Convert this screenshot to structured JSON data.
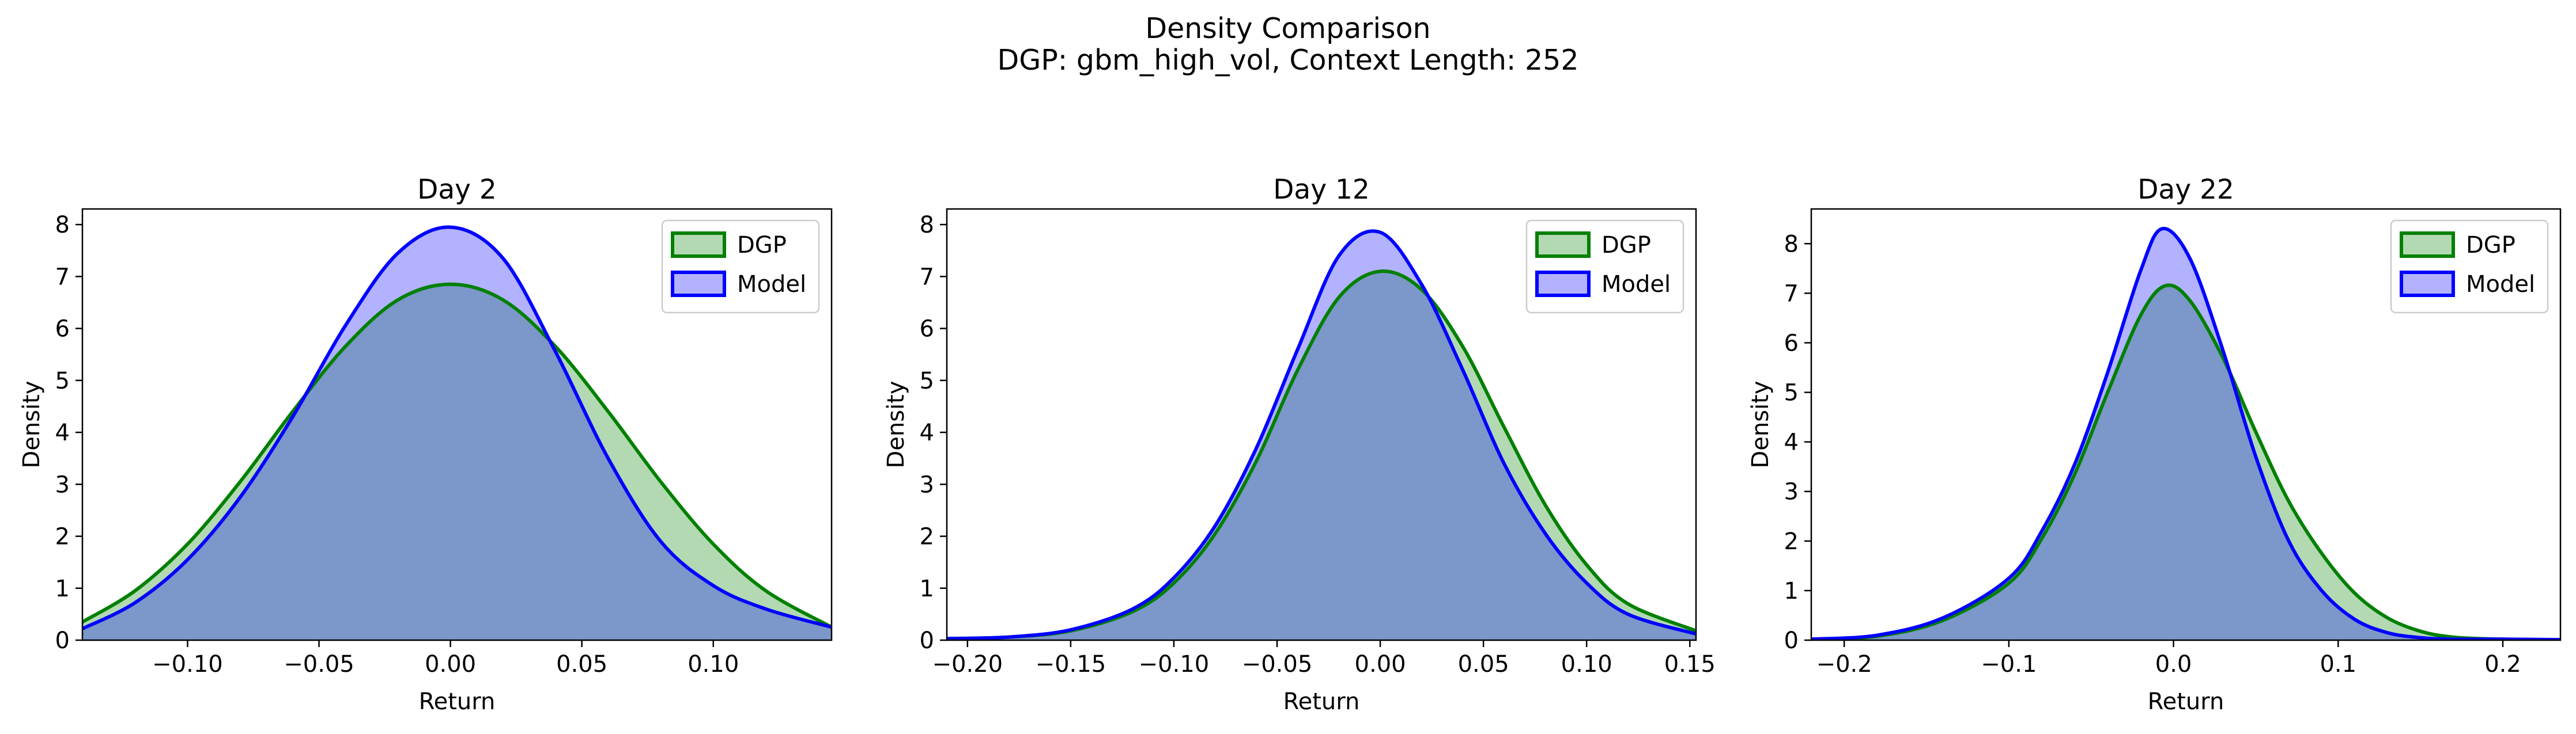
{
  "figure": {
    "title": "Density Comparison",
    "subtitle": "DGP: gbm_high_vol, Context Length: 252"
  },
  "colors": {
    "dgp_line": "#008000",
    "dgp_fill": "#008000",
    "model_line": "#0000ff",
    "model_fill": "#0000ff"
  },
  "chart_data": [
    {
      "type": "area",
      "title": "Day 2",
      "xlabel": "Return",
      "ylabel": "Density",
      "xlim": [
        -0.14,
        0.145
      ],
      "ylim": [
        0,
        8.3
      ],
      "xticks": [
        -0.1,
        -0.05,
        0.0,
        0.05,
        0.1
      ],
      "xtick_labels": [
        "−0.10",
        "−0.05",
        "0.00",
        "0.05",
        "0.10"
      ],
      "yticks": [
        0,
        1,
        2,
        3,
        4,
        5,
        6,
        7,
        8
      ],
      "ytick_labels": [
        "0",
        "1",
        "2",
        "3",
        "4",
        "5",
        "6",
        "7",
        "8"
      ],
      "legend": "top-right",
      "series": [
        {
          "name": "DGP",
          "color": "#008000",
          "x": [
            -0.14,
            -0.12,
            -0.1,
            -0.08,
            -0.06,
            -0.04,
            -0.02,
            0.0,
            0.02,
            0.04,
            0.06,
            0.08,
            0.1,
            0.12,
            0.145
          ],
          "y": [
            0.35,
            0.95,
            1.85,
            3.05,
            4.4,
            5.65,
            6.55,
            6.85,
            6.55,
            5.65,
            4.4,
            3.05,
            1.85,
            0.95,
            0.25
          ]
        },
        {
          "name": "Model",
          "color": "#0000ff",
          "x": [
            -0.14,
            -0.12,
            -0.1,
            -0.08,
            -0.06,
            -0.04,
            -0.02,
            0.0,
            0.02,
            0.04,
            0.06,
            0.08,
            0.1,
            0.12,
            0.145
          ],
          "y": [
            0.22,
            0.72,
            1.55,
            2.75,
            4.3,
            6.05,
            7.45,
            7.95,
            7.35,
            5.55,
            3.5,
            1.9,
            1.05,
            0.6,
            0.25
          ]
        }
      ]
    },
    {
      "type": "area",
      "title": "Day 12",
      "xlabel": "Return",
      "ylabel": "Density",
      "xlim": [
        -0.21,
        0.153
      ],
      "ylim": [
        0,
        8.3
      ],
      "xticks": [
        -0.2,
        -0.15,
        -0.1,
        -0.05,
        0.0,
        0.05,
        0.1,
        0.15
      ],
      "xtick_labels": [
        "−0.20",
        "−0.15",
        "−0.10",
        "−0.05",
        "0.00",
        "0.05",
        "0.10",
        "0.15"
      ],
      "yticks": [
        0,
        1,
        2,
        3,
        4,
        5,
        6,
        7,
        8
      ],
      "ytick_labels": [
        "0",
        "1",
        "2",
        "3",
        "4",
        "5",
        "6",
        "7",
        "8"
      ],
      "legend": "top-right",
      "series": [
        {
          "name": "DGP",
          "color": "#008000",
          "x": [
            -0.21,
            -0.18,
            -0.15,
            -0.12,
            -0.1,
            -0.08,
            -0.06,
            -0.04,
            -0.02,
            0.0,
            0.02,
            0.04,
            0.06,
            0.08,
            0.1,
            0.12,
            0.153
          ],
          "y": [
            0.03,
            0.06,
            0.18,
            0.55,
            1.1,
            2.05,
            3.45,
            5.2,
            6.6,
            7.1,
            6.75,
            5.65,
            4.1,
            2.6,
            1.45,
            0.7,
            0.18
          ]
        },
        {
          "name": "Model",
          "color": "#0000ff",
          "x": [
            -0.21,
            -0.18,
            -0.15,
            -0.12,
            -0.1,
            -0.08,
            -0.06,
            -0.04,
            -0.02,
            0.0,
            0.02,
            0.04,
            0.06,
            0.08,
            0.1,
            0.12,
            0.153
          ],
          "y": [
            0.03,
            0.06,
            0.2,
            0.6,
            1.2,
            2.2,
            3.7,
            5.6,
            7.4,
            7.85,
            6.85,
            5.2,
            3.4,
            2.05,
            1.1,
            0.5,
            0.12
          ]
        }
      ]
    },
    {
      "type": "area",
      "title": "Day 22",
      "xlabel": "Return",
      "ylabel": "Density",
      "xlim": [
        -0.22,
        0.235
      ],
      "ylim": [
        0,
        8.7
      ],
      "xticks": [
        -0.2,
        -0.1,
        0.0,
        0.1,
        0.2
      ],
      "xtick_labels": [
        "−0.2",
        "−0.1",
        "0.0",
        "0.1",
        "0.2"
      ],
      "yticks": [
        0,
        1,
        2,
        3,
        4,
        5,
        6,
        7,
        8
      ],
      "ytick_labels": [
        "0",
        "1",
        "2",
        "3",
        "4",
        "5",
        "6",
        "7",
        "8"
      ],
      "legend": "top-right",
      "series": [
        {
          "name": "DGP",
          "color": "#008000",
          "x": [
            -0.22,
            -0.18,
            -0.14,
            -0.1,
            -0.08,
            -0.06,
            -0.04,
            -0.02,
            -0.005,
            0.01,
            0.03,
            0.05,
            0.07,
            0.09,
            0.11,
            0.13,
            0.15,
            0.17,
            0.2,
            0.235
          ],
          "y": [
            0.02,
            0.08,
            0.4,
            1.15,
            2.05,
            3.35,
            5.0,
            6.55,
            7.15,
            6.85,
            5.7,
            4.2,
            2.8,
            1.75,
            0.95,
            0.45,
            0.18,
            0.06,
            0.02,
            0.01
          ]
        },
        {
          "name": "Model",
          "color": "#0000ff",
          "x": [
            -0.22,
            -0.18,
            -0.14,
            -0.1,
            -0.08,
            -0.06,
            -0.04,
            -0.02,
            -0.007,
            0.01,
            0.03,
            0.05,
            0.07,
            0.09,
            0.11,
            0.13,
            0.15,
            0.17,
            0.2,
            0.235
          ],
          "y": [
            0.02,
            0.1,
            0.45,
            1.25,
            2.2,
            3.55,
            5.4,
            7.45,
            8.3,
            7.7,
            5.85,
            3.7,
            2.0,
            1.0,
            0.42,
            0.15,
            0.05,
            0.02,
            0.02,
            0.01
          ]
        }
      ]
    }
  ]
}
